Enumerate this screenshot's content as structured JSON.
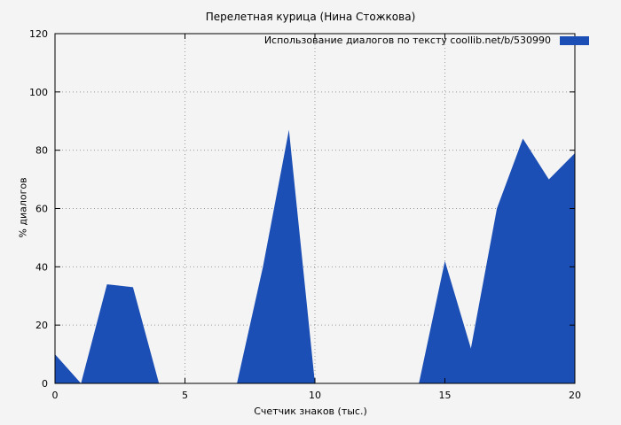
{
  "chart_data": {
    "type": "area",
    "title": "Перелетная курица (Нина Стожкова)",
    "legend": "Использование диалогов по тексту  coollib.net/b/530990",
    "xlabel": "Счетчик знаков (тыс.)",
    "ylabel": "% диалогов",
    "x": [
      0,
      1,
      2,
      3,
      4,
      5,
      6,
      7,
      8,
      9,
      10,
      11,
      12,
      13,
      14,
      15,
      16,
      17,
      18,
      19,
      20
    ],
    "values": [
      10,
      0,
      34,
      33,
      0,
      0,
      0,
      0,
      40,
      87,
      0,
      0,
      0,
      0,
      0,
      42,
      12,
      60,
      84,
      70,
      79
    ],
    "xlim": [
      0,
      20
    ],
    "ylim": [
      0,
      120
    ],
    "xticks": [
      0,
      5,
      10,
      15,
      20
    ],
    "yticks": [
      0,
      20,
      40,
      60,
      80,
      100,
      120
    ],
    "grid": true,
    "legend_position": "top-right",
    "colors": {
      "fill": "#1c4fb5",
      "grid": "#9a9a9a",
      "axis": "#000000",
      "background": "#f4f4f4"
    }
  }
}
